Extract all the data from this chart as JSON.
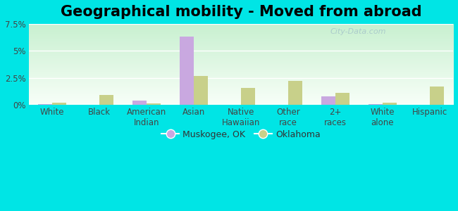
{
  "title": "Geographical mobility - Moved from abroad",
  "categories": [
    "White",
    "Black",
    "American\nIndian",
    "Asian",
    "Native\nHawaiian",
    "Other\nrace",
    "2+\nraces",
    "White\nalone",
    "Hispanic"
  ],
  "muskogee_values": [
    0.1,
    0.0,
    0.4,
    6.3,
    0.0,
    0.0,
    0.8,
    0.1,
    0.0
  ],
  "oklahoma_values": [
    0.2,
    0.9,
    0.15,
    2.7,
    1.6,
    2.2,
    1.1,
    0.2,
    1.7
  ],
  "muskogee_color": "#c9a8e0",
  "oklahoma_color": "#c8d08a",
  "figure_bg": "#00e5e5",
  "plot_bg": "#e8f8e8",
  "ylim": [
    0,
    7.5
  ],
  "ytick_vals": [
    0,
    2.5,
    5.0,
    7.5
  ],
  "ytick_labels": [
    "0%",
    "2.5%",
    "5%",
    "7.5%"
  ],
  "bar_width": 0.3,
  "legend_muskogee": "Muskogee, OK",
  "legend_oklahoma": "Oklahoma",
  "title_fontsize": 15,
  "tick_fontsize": 8.5,
  "legend_fontsize": 9,
  "watermark": "City-Data.com"
}
